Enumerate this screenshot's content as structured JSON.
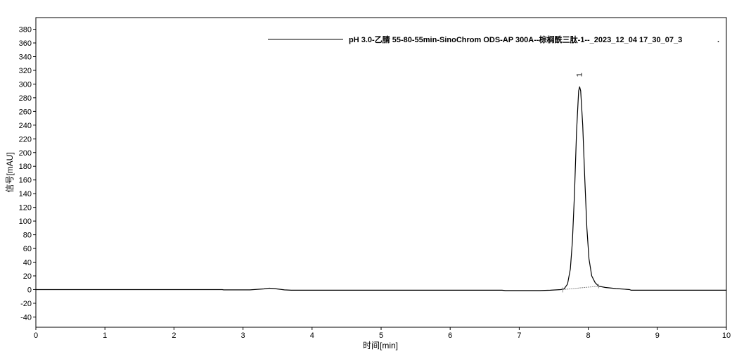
{
  "chart_data": {
    "type": "line",
    "title": "",
    "xlabel": "时间[min]",
    "ylabel": "信号[mAU]",
    "xlim": [
      0,
      10
    ],
    "ylim": [
      -55,
      397
    ],
    "xticks": [
      0,
      1,
      2,
      3,
      4,
      5,
      6,
      7,
      8,
      9,
      10
    ],
    "yticks": [
      -40,
      -20,
      0,
      20,
      40,
      60,
      80,
      100,
      120,
      140,
      160,
      180,
      200,
      220,
      240,
      260,
      280,
      300,
      320,
      340,
      360,
      380
    ],
    "grid": false,
    "legend_position": "top",
    "series": [
      {
        "name": "pH 3.0-乙腈 55-80-55min-SinoChrom ODS-AP 300A--棕榈酰三肽-1--_2023_12_04 17_30_07_3",
        "color": "#000000",
        "points": [
          [
            0,
            0
          ],
          [
            2.7,
            0
          ],
          [
            2.72,
            -0.5
          ],
          [
            3.1,
            -0.5
          ],
          [
            3.3,
            1
          ],
          [
            3.38,
            2
          ],
          [
            3.45,
            1.5
          ],
          [
            3.6,
            -0.5
          ],
          [
            3.7,
            -1
          ],
          [
            5.5,
            -1
          ],
          [
            6.75,
            -1
          ],
          [
            6.8,
            -1.5
          ],
          [
            7.3,
            -1.5
          ],
          [
            7.45,
            -1
          ],
          [
            7.6,
            0
          ],
          [
            7.65,
            1
          ],
          [
            7.7,
            8
          ],
          [
            7.74,
            30
          ],
          [
            7.77,
            70
          ],
          [
            7.8,
            140
          ],
          [
            7.83,
            230
          ],
          [
            7.86,
            290
          ],
          [
            7.875,
            296
          ],
          [
            7.89,
            290
          ],
          [
            7.92,
            240
          ],
          [
            7.95,
            160
          ],
          [
            7.98,
            90
          ],
          [
            8.01,
            45
          ],
          [
            8.05,
            20
          ],
          [
            8.1,
            10
          ],
          [
            8.15,
            5
          ],
          [
            8.25,
            3
          ],
          [
            8.4,
            1.5
          ],
          [
            8.6,
            0
          ],
          [
            8.62,
            -1
          ],
          [
            9.5,
            -1
          ],
          [
            10,
            -1
          ]
        ]
      }
    ],
    "peaks": [
      {
        "label": "1",
        "retention_time": 7.875,
        "height": 296,
        "baseline_start": [
          7.63,
          0
        ],
        "baseline_end": [
          8.15,
          5
        ]
      }
    ],
    "legend_trailing_mark": "."
  }
}
